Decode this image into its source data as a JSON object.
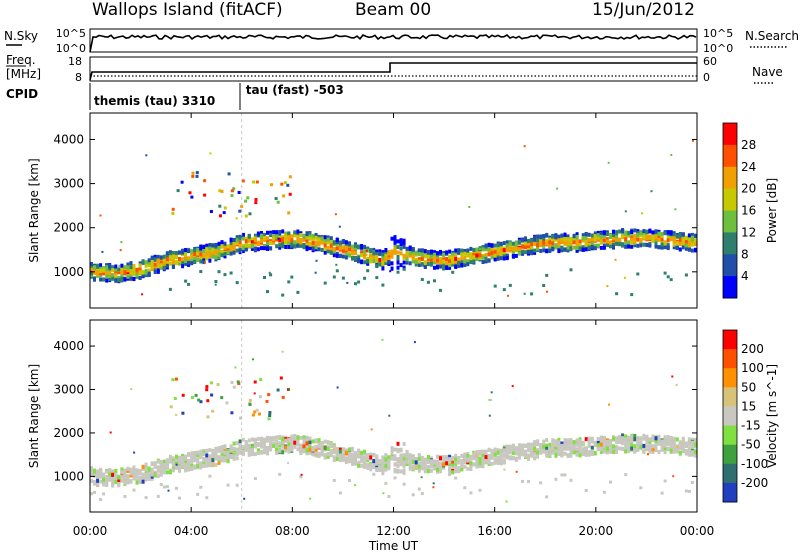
{
  "header": {
    "site": "Wallops Island (fitACF)",
    "beam": "Beam 00",
    "date": "15/Jun/2012"
  },
  "top_panels": {
    "nsky": {
      "label": "N.Sky",
      "ticks": [
        "10^5",
        "10^0"
      ]
    },
    "nsearch": {
      "label": "N.Search",
      "ticks": [
        "10^5",
        "10^0"
      ]
    },
    "freq": {
      "label": "Freq.",
      "unit": "[MHz]",
      "ticks": [
        "18",
        "8"
      ]
    },
    "nave": {
      "label": "Nave",
      "ticks": [
        "60",
        "0"
      ]
    },
    "cpid": {
      "label": "CPID",
      "segments": [
        {
          "label": "themis (tau) 3310",
          "start_hr": 0
        },
        {
          "label": "tau (fast) -503",
          "start_hr": 6
        }
      ]
    }
  },
  "chart_data": [
    {
      "type": "heatmap",
      "title": "",
      "xlabel": "Time UT",
      "ylabel": "Slant Range [km]",
      "x_ticks": [
        "00:00",
        "04:00",
        "08:00",
        "12:00",
        "16:00",
        "20:00",
        "00:00"
      ],
      "x_range_hours": [
        0,
        24
      ],
      "y_ticks": [
        1000,
        2000,
        3000,
        4000
      ],
      "y_range_km": [
        180,
        4600
      ],
      "colorbar": {
        "label": "Power [dB]",
        "ticks": [
          "4",
          "8",
          "12",
          "16",
          "20",
          "24",
          "28"
        ],
        "colors": [
          "#0000ff",
          "#1f4fa8",
          "#2f7f6f",
          "#6fbf3f",
          "#c8c800",
          "#f0a000",
          "#ff5000",
          "#ff0000"
        ]
      },
      "backscatter_center_km": [
        [
          0,
          1050
        ],
        [
          1,
          1000
        ],
        [
          2,
          1100
        ],
        [
          3,
          1300
        ],
        [
          4,
          1400
        ],
        [
          5,
          1500
        ],
        [
          6,
          1700
        ],
        [
          7,
          1750
        ],
        [
          8,
          1800
        ],
        [
          9,
          1700
        ],
        [
          10,
          1550
        ],
        [
          11,
          1400
        ],
        [
          11.5,
          1300
        ],
        [
          12,
          1500
        ],
        [
          13,
          1350
        ],
        [
          14,
          1300
        ],
        [
          15,
          1400
        ],
        [
          16,
          1500
        ],
        [
          17,
          1600
        ],
        [
          18,
          1700
        ],
        [
          19,
          1700
        ],
        [
          20,
          1750
        ],
        [
          21,
          1800
        ],
        [
          22,
          1800
        ],
        [
          23,
          1750
        ],
        [
          24,
          1700
        ]
      ]
    },
    {
      "type": "heatmap",
      "title": "",
      "xlabel": "Time UT",
      "ylabel": "Slant Range [km]",
      "x_ticks": [
        "00:00",
        "04:00",
        "08:00",
        "12:00",
        "16:00",
        "20:00",
        "00:00"
      ],
      "x_range_hours": [
        0,
        24
      ],
      "y_ticks": [
        1000,
        2000,
        3000,
        4000
      ],
      "y_range_km": [
        180,
        4600
      ],
      "colorbar": {
        "label": "Velocity [m s^-1]",
        "ticks": [
          "200",
          "100",
          "50",
          "15",
          "-15",
          "-50",
          "-100",
          "-200"
        ],
        "colors": [
          "#1f3fbf",
          "#2f6f6f",
          "#3fa03f",
          "#7fe040",
          "#c8c8c0",
          "#d7c27a",
          "#ff9000",
          "#ff5000",
          "#ff0000"
        ]
      }
    }
  ]
}
